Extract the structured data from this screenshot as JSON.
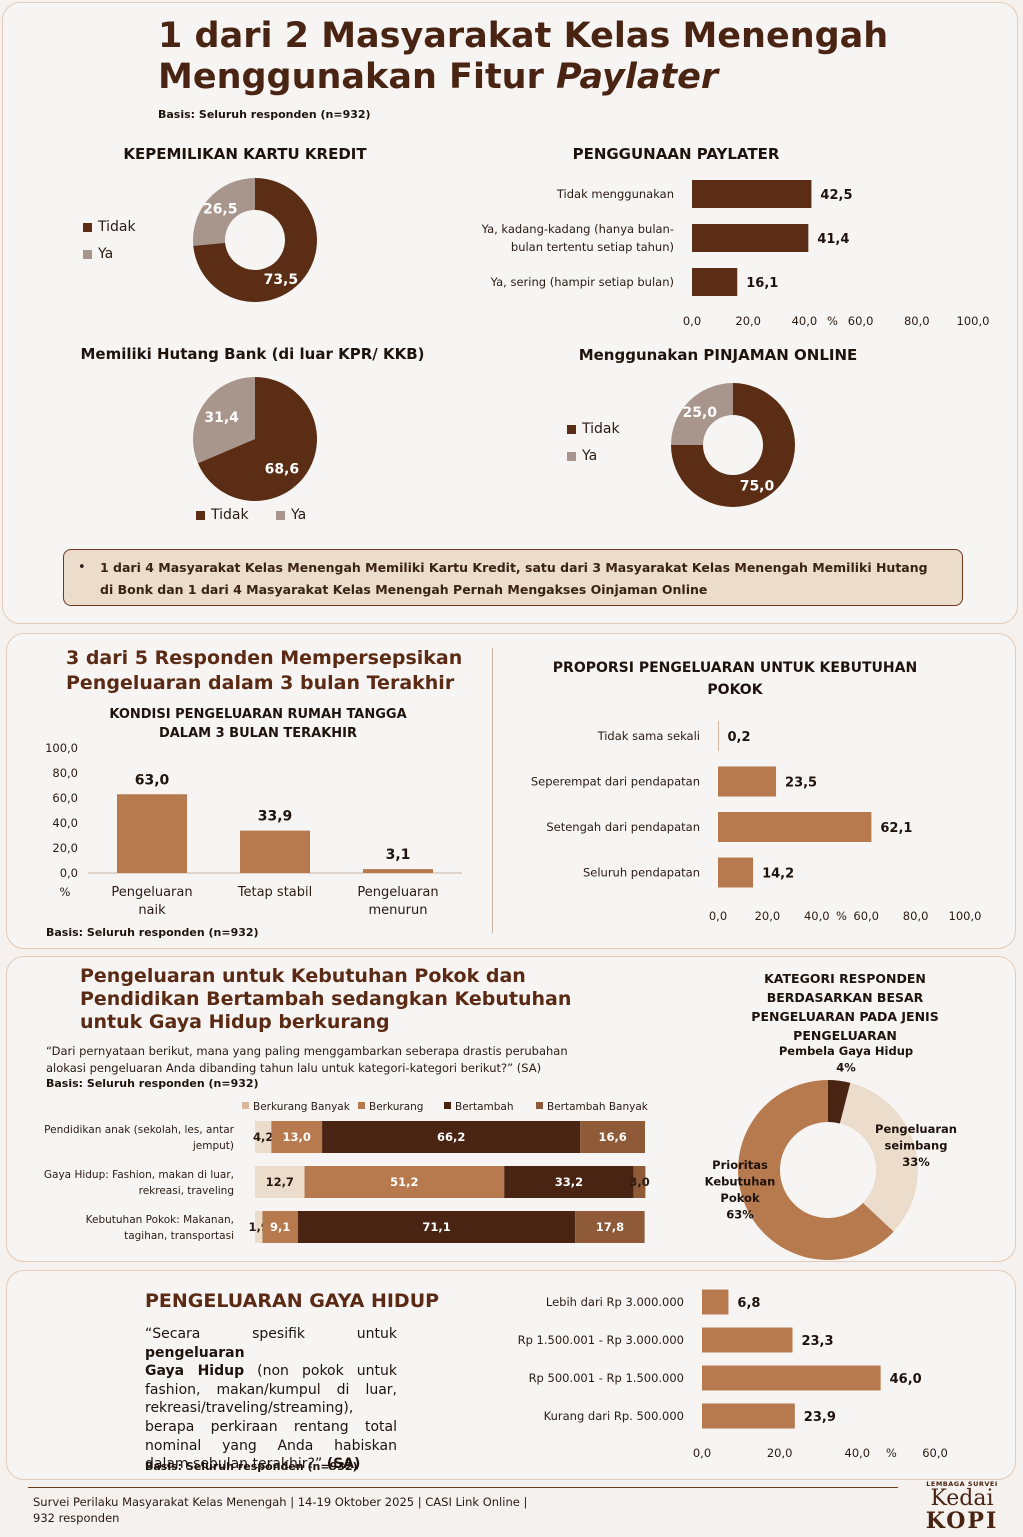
{
  "header": {
    "title_line1": "1 dari 2 Masyarakat Kelas Menengah",
    "title_line2a": "Menggunakan Fitur ",
    "title_line2b": "Paylater",
    "basis": "Basis: Seluruh responden (n=932)"
  },
  "colors": {
    "dark": "#5a2d14",
    "grey": "#a8968c",
    "mid": "#b77a4e",
    "light": "#ecdccc",
    "darkest": "#4a2412"
  },
  "kartu_kredit": {
    "title": "KEPEMILIKAN KARTU KREDIT",
    "legend": [
      "Tidak",
      "Ya"
    ]
  },
  "paylater": {
    "title": "PENGGUNAAN PAYLATER"
  },
  "hutang": {
    "title": "Memiliki Hutang Bank (di luar KPR/ KKB)",
    "legend": [
      "Tidak",
      "Ya"
    ]
  },
  "pinjol": {
    "title": "Menggunakan PINJAMAN ONLINE",
    "legend": [
      "Tidak",
      "Ya"
    ]
  },
  "note": "1 dari 4 Masyarakat Kelas Menengah Memiliki Kartu Kredit, satu dari 3 Masyarakat Kelas Menengah Memiliki Hutang di Bonk dan 1 dari 4 Masyarakat Kelas Menengah Pernah Mengakses Oinjaman Online",
  "sec2": {
    "heading_line1": "3 dari 5 Responden Mempersepsikan",
    "heading_line2": "Pengeluaran dalam 3 bulan Terakhir",
    "chart_title_line1": "KONDISI PENGELUARAN RUMAH TANGGA",
    "chart_title_line2": "DALAM 3 BULAN TERAKHIR",
    "basis": "Basis: Seluruh responden (n=932)",
    "right_title_line1": "PROPORSI PENGELUARAN UNTUK KEBUTUHAN",
    "right_title_line2": "POKOK"
  },
  "sec3": {
    "heading_line1": "Pengeluaran untuk Kebutuhan Pokok dan",
    "heading_line2": "Pendidikan Bertambah sedangkan Kebutuhan",
    "heading_line3": "untuk Gaya Hidup berkurang",
    "question_line1": "“Dari pernyataan berikut, mana yang paling menggambarkan  seberapa drastis perubahan",
    "question_line2": "alokasi pengeluaran Anda dibanding tahun lalu untuk kategori-kategori  berikut?” (SA)",
    "basis": "Basis: Seluruh responden (n=932)",
    "donut_title": [
      "KATEGORI RESPONDEN",
      "BERDASARKAN BESAR",
      "PENGELUARAN PADA JENIS",
      "PENGELUARAN"
    ]
  },
  "sec4": {
    "heading": "PENGELUARAN GAYA HIDUP",
    "quote_lines": [
      [
        "“Secara spesifik untuk ",
        "pengeluaran"
      ],
      [
        "Gaya Hidup",
        " (non pokok untuk"
      ],
      [
        "",
        "fashion, makan/kumpul di luar,"
      ],
      [
        "",
        "rekreasi/traveling/streaming),"
      ],
      [
        "",
        "berapa perkiraan rentang total"
      ],
      [
        "",
        "nominal yang Anda habiskan"
      ],
      [
        "",
        "dalam sebulan terakhir?” (SA)"
      ]
    ],
    "basis": "Basis: Seluruh responden (n=932)"
  },
  "footer": {
    "line1": "Survei Perilaku Masyarakat Kelas Menengah | 14-19 Oktober 2025 | CASI Link Online |",
    "line2": "932 responden",
    "logo_small": "LEMBAGA SURVEI",
    "logo_line1": "Kedai",
    "logo_line2": "KOPI"
  },
  "chart_data": [
    {
      "type": "pie",
      "title": "KEPEMILIKAN KARTU KREDIT",
      "donut": true,
      "categories": [
        "Tidak",
        "Ya"
      ],
      "values": [
        73.5,
        26.5
      ],
      "labels": [
        "73,5",
        "26,5"
      ]
    },
    {
      "type": "bar",
      "orientation": "horizontal",
      "title": "PENGGUNAAN PAYLATER",
      "categories": [
        [
          "Tidak menggunakan"
        ],
        [
          "Ya, kadang-kadang (hanya bulan-",
          "bulan tertentu setiap tahun)"
        ],
        [
          "Ya, sering (hampir setiap bulan)"
        ]
      ],
      "values": [
        42.5,
        41.4,
        16.1
      ],
      "labels": [
        "42,5",
        "41,4",
        "16,1"
      ],
      "ticks": [
        "0,0",
        "20,0",
        "40,0",
        "60,0",
        "80,0",
        "100,0"
      ],
      "unit": "%",
      "xlim": [
        0,
        100
      ]
    },
    {
      "type": "pie",
      "title": "Memiliki Hutang Bank (di luar KPR/ KKB)",
      "donut": false,
      "categories": [
        "Tidak",
        "Ya"
      ],
      "values": [
        68.6,
        31.4
      ],
      "labels": [
        "68,6",
        "31,4"
      ]
    },
    {
      "type": "pie",
      "title": "Menggunakan PINJAMAN ONLINE",
      "donut": true,
      "categories": [
        "Tidak",
        "Ya"
      ],
      "values": [
        75.0,
        25.0
      ],
      "labels": [
        "75,0",
        "25,0"
      ]
    },
    {
      "type": "bar",
      "orientation": "vertical",
      "title": "KONDISI PENGELUARAN RUMAH TANGGA DALAM 3 BULAN TERAKHIR",
      "categories": [
        [
          "Pengeluaran",
          "naik"
        ],
        [
          "Tetap stabil"
        ],
        [
          "Pengeluaran",
          "menurun"
        ]
      ],
      "values": [
        63.0,
        33.9,
        3.1
      ],
      "labels": [
        "63,0",
        "33,9",
        "3,1"
      ],
      "ticks": [
        "0,0",
        "20,0",
        "40,0",
        "60,0",
        "80,0",
        "100,0"
      ],
      "unit": "%",
      "ylim": [
        0,
        100
      ]
    },
    {
      "type": "bar",
      "orientation": "horizontal",
      "title": "PROPORSI PENGELUARAN UNTUK KEBUTUHAN POKOK",
      "categories": [
        [
          "Tidak sama sekali"
        ],
        [
          "Seperempat dari pendapatan"
        ],
        [
          "Setengah dari pendapatan"
        ],
        [
          "Seluruh pendapatan"
        ]
      ],
      "values": [
        0.2,
        23.5,
        62.1,
        14.2
      ],
      "labels": [
        "0,2",
        "23,5",
        "62,1",
        "14,2"
      ],
      "ticks": [
        "0,0",
        "20,0",
        "40,0",
        "60,0",
        "80,0",
        "100,0"
      ],
      "unit": "%",
      "xlim": [
        0,
        100
      ]
    },
    {
      "type": "bar",
      "orientation": "horizontal",
      "stacked": true,
      "series_names": [
        "Berkurang Banyak",
        "Berkurang",
        "Bertambah",
        "Bertambah Banyak"
      ],
      "categories": [
        [
          "Pendidikan anak (sekolah, les, antar",
          "jemput)"
        ],
        [
          "Gaya Hidup: Fashion, makan di luar,",
          "rekreasi, traveling"
        ],
        [
          "Kebutuhan Pokok: Makanan,",
          "tagihan, transportasi"
        ]
      ],
      "rows": [
        [
          4.2,
          13.0,
          66.2,
          16.6
        ],
        [
          12.7,
          51.2,
          33.2,
          3.0
        ],
        [
          1.9,
          9.1,
          71.1,
          17.8
        ]
      ],
      "labels": [
        [
          "4,2",
          "13,0",
          "66,2",
          "16,6"
        ],
        [
          "12,7",
          "51,2",
          "33,2",
          "3,0"
        ],
        [
          "1,9",
          "9,1",
          "71,1",
          "17,8"
        ]
      ]
    },
    {
      "type": "pie",
      "donut": true,
      "title": "KATEGORI RESPONDEN BERDASARKAN BESAR PENGELUARAN PADA JENIS PENGELUARAN",
      "categories": [
        [
          "Pembela Gaya Hidup"
        ],
        [
          "Pengeluaran",
          "seimbang"
        ],
        [
          "Prioritas",
          "Kebutuhan",
          "Pokok"
        ]
      ],
      "values": [
        4,
        33,
        63
      ],
      "labels": [
        "4%",
        "33%",
        "63%"
      ]
    },
    {
      "type": "bar",
      "orientation": "horizontal",
      "title": "PENGELUARAN GAYA HIDUP",
      "categories": [
        [
          "Lebih dari Rp 3.000.000"
        ],
        [
          "Rp 1.500.001 - Rp 3.000.000"
        ],
        [
          "Rp 500.001 - Rp 1.500.000"
        ],
        [
          "Kurang dari Rp. 500.000"
        ]
      ],
      "values": [
        6.8,
        23.3,
        46.0,
        23.9
      ],
      "labels": [
        "6,8",
        "23,3",
        "46,0",
        "23,9"
      ],
      "ticks": [
        "0,0",
        "20,0",
        "40,0",
        "60,0"
      ],
      "unit": "%",
      "xlim": [
        0,
        60
      ]
    }
  ]
}
